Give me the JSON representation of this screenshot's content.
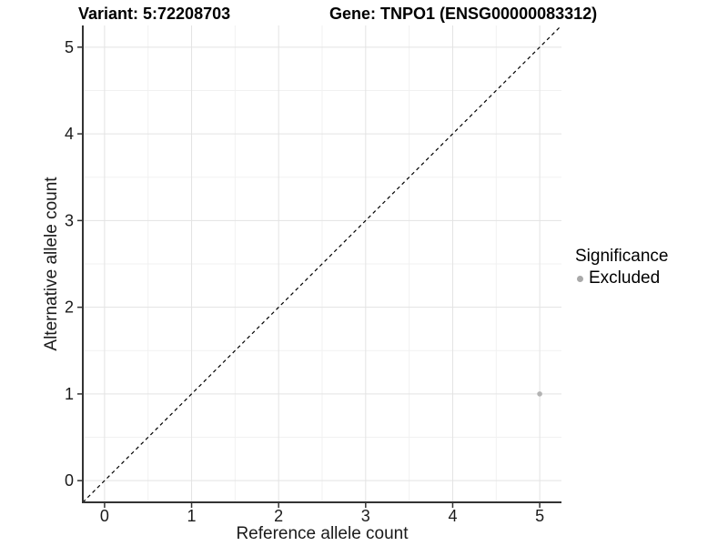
{
  "header": {
    "variant_title": "Variant: 5:72208703",
    "gene_title": "Gene: TNPO1 (ENSG00000083312)"
  },
  "chart_data": {
    "type": "scatter",
    "titles": [
      "Variant: 5:72208703",
      "Gene: TNPO1 (ENSG00000083312)"
    ],
    "xlabel": "Reference allele count",
    "ylabel": "Alternative allele count",
    "xlim": [
      -0.25,
      5.25
    ],
    "ylim": [
      -0.25,
      5.25
    ],
    "x_ticks": [
      0,
      1,
      2,
      3,
      4,
      5
    ],
    "y_ticks": [
      0,
      1,
      2,
      3,
      4,
      5
    ],
    "grid": {
      "major": true,
      "minor": true
    },
    "series": [
      {
        "name": "Excluded",
        "color": "#b3b3b3",
        "points": [
          {
            "x": 5,
            "y": 1
          }
        ]
      }
    ],
    "reference_line": {
      "type": "identity",
      "equation": "y = x",
      "style": "dashed",
      "color": "#000000",
      "from": [
        -0.25,
        -0.25
      ],
      "to": [
        5.25,
        5.25
      ]
    },
    "legend": {
      "title": "Significance",
      "position": "right",
      "items": [
        {
          "label": "Excluded",
          "color": "#a9a9a9"
        }
      ]
    }
  },
  "style": {
    "background": "#ffffff",
    "grid_major_color": "#e3e3e3",
    "grid_minor_color": "#f1f1f1",
    "axis_line_color": "#333333",
    "tick_color": "#333333",
    "tick_label_color": "#1a1a1a",
    "point_color": "#b3b3b3"
  }
}
